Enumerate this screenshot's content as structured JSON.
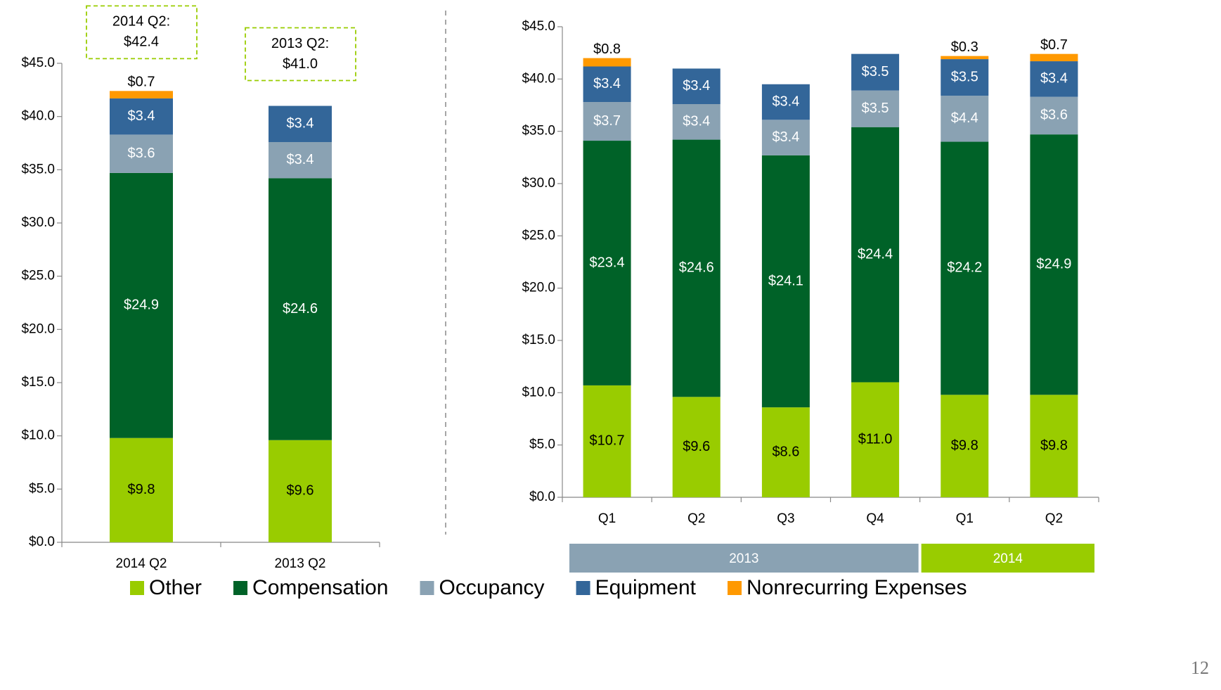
{
  "legend": [
    {
      "name": "Other",
      "color": "#99cc00"
    },
    {
      "name": "Compensation",
      "color": "#006228"
    },
    {
      "name": "Occupancy",
      "color": "#8aa2b3"
    },
    {
      "name": "Equipment",
      "color": "#336699"
    },
    {
      "name": "Nonrecurring Expenses",
      "color": "#ff9900"
    }
  ],
  "page_number": "12",
  "chart_data": [
    {
      "type": "stacked_bar",
      "categories": [
        "2014 Q2",
        "2013 Q2"
      ],
      "ylim": [
        0,
        45
      ],
      "yticks": [
        {
          "value": 0,
          "label": "$0.0"
        },
        {
          "value": 5,
          "label": "$5.0"
        },
        {
          "value": 10,
          "label": "$10.0"
        },
        {
          "value": 15,
          "label": "$15.0"
        },
        {
          "value": 20,
          "label": "$20.0"
        },
        {
          "value": 25,
          "label": "$25.0"
        },
        {
          "value": 30,
          "label": "$30.0"
        },
        {
          "value": 35,
          "label": "$35.0"
        },
        {
          "value": 40,
          "label": "$40.0"
        },
        {
          "value": 45,
          "label": "$45.0"
        }
      ],
      "series": [
        {
          "values": [
            9.8,
            9.6
          ],
          "value_labels": [
            "$9.8",
            "$9.6"
          ]
        },
        {
          "values": [
            24.9,
            24.6
          ],
          "value_labels": [
            "$24.9",
            "$24.6"
          ]
        },
        {
          "values": [
            3.6,
            3.4
          ],
          "value_labels": [
            "$3.6",
            "$3.4"
          ]
        },
        {
          "values": [
            3.4,
            3.4
          ],
          "value_labels": [
            "$3.4",
            "$3.4"
          ]
        },
        {
          "values": [
            0.7,
            null
          ],
          "value_labels": [
            "$0.7",
            null
          ]
        }
      ],
      "annotations": [
        {
          "title": "2014 Q2:",
          "text": "$42.4"
        },
        {
          "title": "2013 Q2:",
          "text": "$41.0"
        }
      ]
    },
    {
      "type": "stacked_bar",
      "groups": [
        {
          "name": "2013",
          "color": "#8aa2b3",
          "categories": [
            "Q1",
            "Q2",
            "Q3",
            "Q4"
          ]
        },
        {
          "name": "2014",
          "color": "#99cc00",
          "categories": [
            "Q1",
            "Q2"
          ]
        }
      ],
      "ylim": [
        0,
        45
      ],
      "yticks": [
        {
          "value": 0,
          "label": "$0.0"
        },
        {
          "value": 5,
          "label": "$5.0"
        },
        {
          "value": 10,
          "label": "$10.0"
        },
        {
          "value": 15,
          "label": "$15.0"
        },
        {
          "value": 20,
          "label": "$20.0"
        },
        {
          "value": 25,
          "label": "$25.0"
        },
        {
          "value": 30,
          "label": "$30.0"
        },
        {
          "value": 35,
          "label": "$35.0"
        },
        {
          "value": 40,
          "label": "$40.0"
        },
        {
          "value": 45,
          "label": "$45.0"
        }
      ],
      "series": [
        {
          "values": [
            10.7,
            9.6,
            8.6,
            11.0,
            9.8,
            9.8
          ],
          "value_labels": [
            "$10.7",
            "$9.6",
            "$8.6",
            "$11.0",
            "$9.8",
            "$9.8"
          ]
        },
        {
          "values": [
            23.4,
            24.6,
            24.1,
            24.4,
            24.2,
            24.9
          ],
          "value_labels": [
            "$23.4",
            "$24.6",
            "$24.1",
            "$24.4",
            "$24.2",
            "$24.9"
          ]
        },
        {
          "values": [
            3.7,
            3.4,
            3.4,
            3.5,
            4.4,
            3.6
          ],
          "value_labels": [
            "$3.7",
            "$3.4",
            "$3.4",
            "$3.5",
            "$4.4",
            "$3.6"
          ]
        },
        {
          "values": [
            3.4,
            3.4,
            3.4,
            3.5,
            3.5,
            3.4
          ],
          "value_labels": [
            "$3.4",
            "$3.4",
            "$3.4",
            "$3.5",
            "$3.5",
            "$3.4"
          ]
        },
        {
          "values": [
            0.8,
            null,
            null,
            null,
            0.3,
            0.7
          ],
          "value_labels": [
            "$0.8",
            null,
            null,
            null,
            "$0.3",
            "$0.7"
          ]
        }
      ]
    }
  ]
}
